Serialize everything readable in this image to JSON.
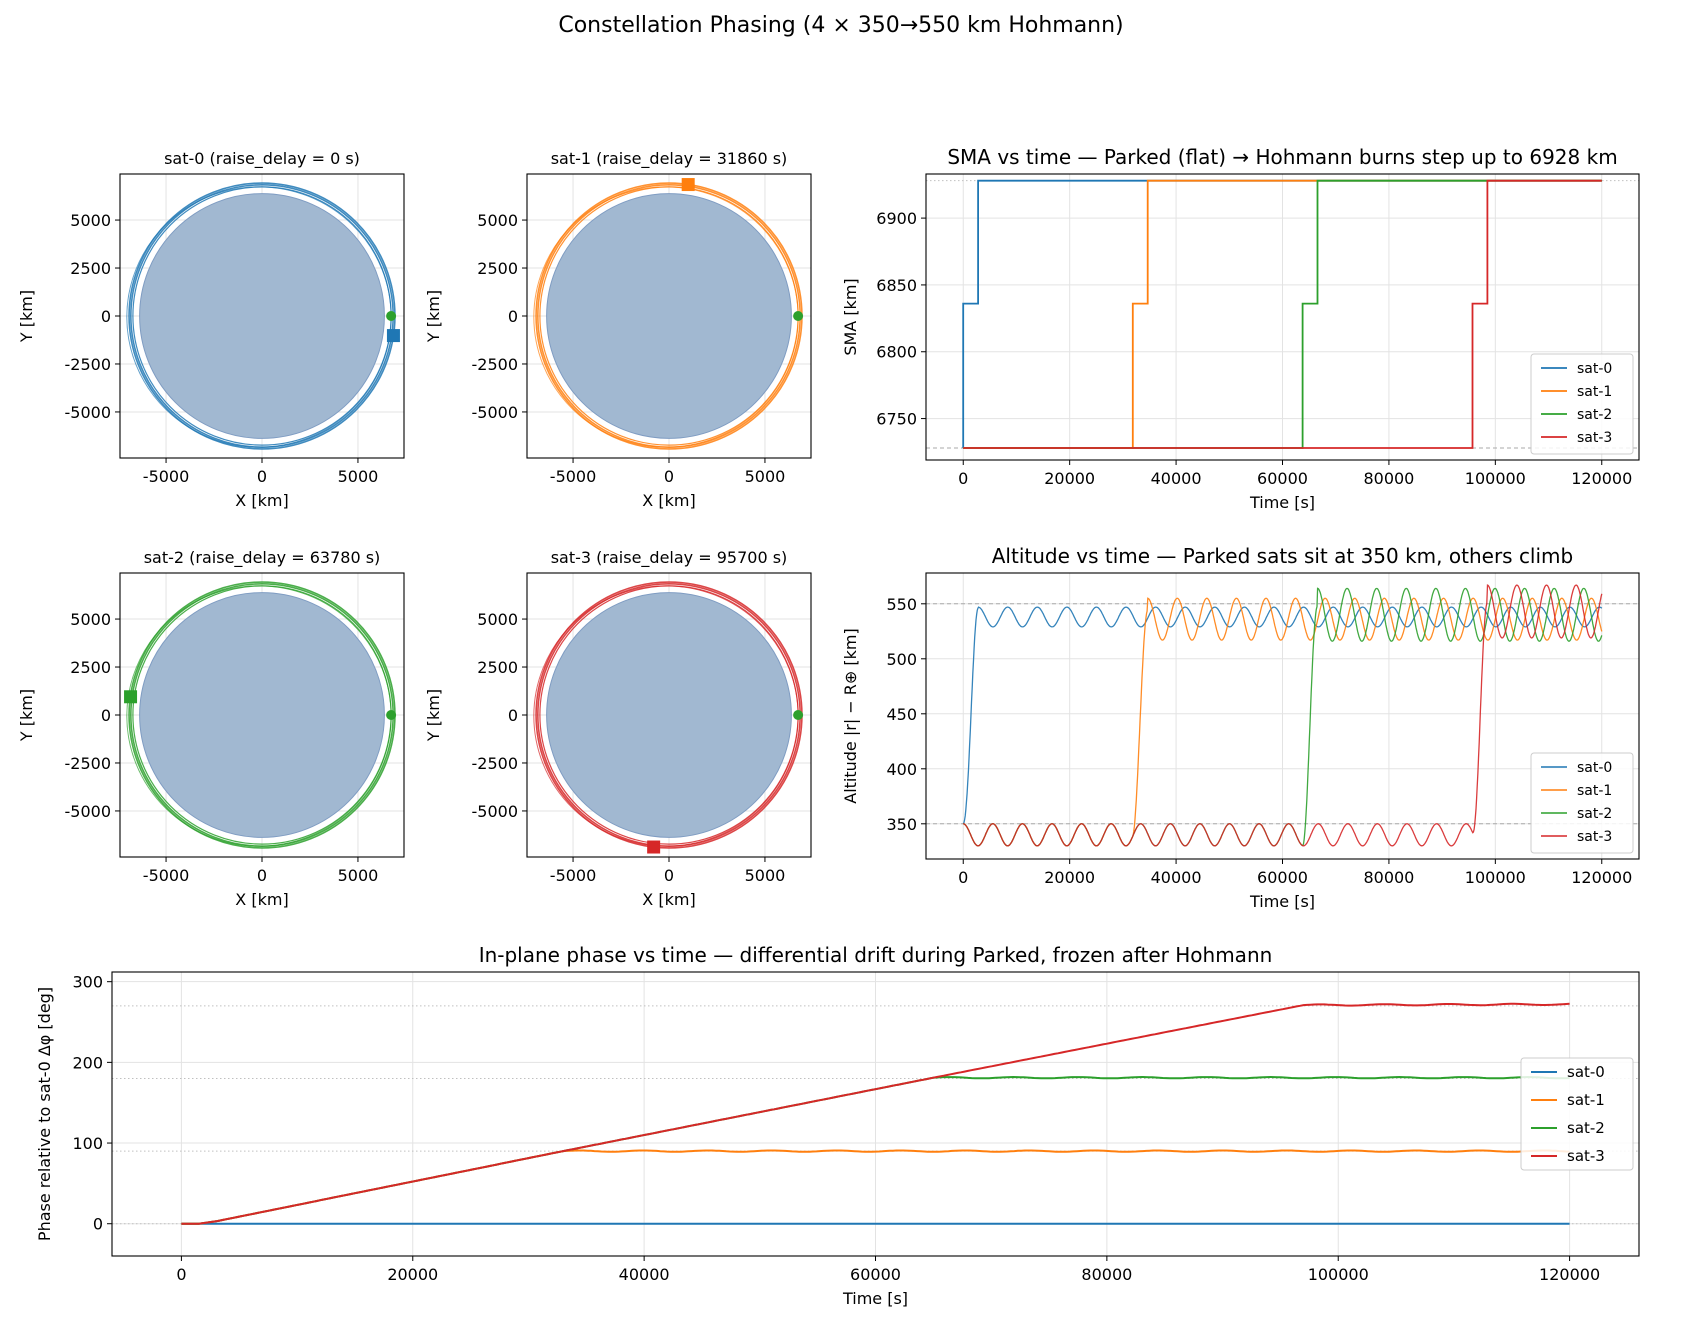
{
  "figure": {
    "suptitle": "Constellation Phasing (4 × 350→550 km Hohmann)"
  },
  "colors": {
    "sat-0": "#1f77b4",
    "sat-1": "#ff7f0e",
    "sat-2": "#2ca02c",
    "sat-3": "#d62728",
    "earth": "#a1b8d1",
    "marker_start": "#2ca02c"
  },
  "chart_data": [
    {
      "type": "line",
      "id": "orbit-sat-0",
      "title": "sat-0 (raise_delay = 0 s)",
      "xlabel": "X [km]",
      "ylabel": "Y [km]",
      "xlim": [
        -7400,
        7400
      ],
      "ylim": [
        -7400,
        7400
      ],
      "xticks": [
        -5000,
        0,
        5000
      ],
      "yticks": [
        -5000,
        -2500,
        0,
        2500,
        5000
      ],
      "earth_radius": 6378,
      "orbit_radii": [
        6728,
        6836,
        6928
      ],
      "start_marker": [
        6728,
        0
      ],
      "end_marker": [
        6850,
        -1020
      ],
      "grid": true
    },
    {
      "type": "line",
      "id": "orbit-sat-1",
      "title": "sat-1 (raise_delay = 31860 s)",
      "xlabel": "X [km]",
      "ylabel": "Y [km]",
      "xlim": [
        -7400,
        7400
      ],
      "ylim": [
        -7400,
        7400
      ],
      "xticks": [
        -5000,
        0,
        5000
      ],
      "yticks": [
        -5000,
        -2500,
        0,
        2500,
        5000
      ],
      "earth_radius": 6378,
      "orbit_radii": [
        6728,
        6836,
        6928
      ],
      "start_marker": [
        6728,
        0
      ],
      "end_marker": [
        1000,
        6850
      ],
      "grid": true
    },
    {
      "type": "line",
      "id": "orbit-sat-2",
      "title": "sat-2 (raise_delay = 63780 s)",
      "xlabel": "X [km]",
      "ylabel": "Y [km]",
      "xlim": [
        -7400,
        7400
      ],
      "ylim": [
        -7400,
        7400
      ],
      "xticks": [
        -5000,
        0,
        5000
      ],
      "yticks": [
        -5000,
        -2500,
        0,
        2500,
        5000
      ],
      "earth_radius": 6378,
      "orbit_radii": [
        6728,
        6836,
        6928
      ],
      "start_marker": [
        6728,
        0
      ],
      "end_marker": [
        -6850,
        950
      ],
      "grid": true
    },
    {
      "type": "line",
      "id": "orbit-sat-3",
      "title": "sat-3 (raise_delay = 95700 s)",
      "xlabel": "X [km]",
      "ylabel": "Y [km]",
      "xlim": [
        -7400,
        7400
      ],
      "ylim": [
        -7400,
        7400
      ],
      "xticks": [
        -5000,
        0,
        5000
      ],
      "yticks": [
        -5000,
        -2500,
        0,
        2500,
        5000
      ],
      "earth_radius": 6378,
      "orbit_radii": [
        6728,
        6836,
        6928
      ],
      "start_marker": [
        6728,
        0
      ],
      "end_marker": [
        -800,
        -6880
      ],
      "grid": true
    },
    {
      "type": "line",
      "id": "sma",
      "title": "SMA vs time — Parked (flat) → Hohmann burns step up to 6928 km",
      "xlabel": "Time [s]",
      "ylabel": "SMA [km]",
      "xlim": [
        -7000,
        127000
      ],
      "ylim": [
        6719,
        6933
      ],
      "xticks": [
        0,
        20000,
        40000,
        60000,
        80000,
        100000,
        120000
      ],
      "yticks": [
        6750,
        6800,
        6850,
        6900
      ],
      "reference_lines": [
        6728,
        6928
      ],
      "legend": "lower right",
      "grid": true,
      "series": [
        {
          "name": "sat-0",
          "x": [
            0,
            0,
            2800,
            2800,
            120000
          ],
          "y": [
            6728,
            6836,
            6836,
            6928,
            6928
          ]
        },
        {
          "name": "sat-1",
          "x": [
            0,
            31860,
            31860,
            34660,
            34660,
            120000
          ],
          "y": [
            6728,
            6728,
            6836,
            6836,
            6928,
            6928
          ]
        },
        {
          "name": "sat-2",
          "x": [
            0,
            63780,
            63780,
            66580,
            66580,
            120000
          ],
          "y": [
            6728,
            6728,
            6836,
            6836,
            6928,
            6928
          ]
        },
        {
          "name": "sat-3",
          "x": [
            0,
            95700,
            95700,
            98500,
            98500,
            120000
          ],
          "y": [
            6728,
            6728,
            6836,
            6836,
            6928,
            6928
          ]
        }
      ]
    },
    {
      "type": "line",
      "id": "altitude",
      "title": "Altitude vs time — Parked sats sit at 350 km, others climb",
      "xlabel": "Time [s]",
      "ylabel": "Altitude |r| − R⊕ [km]",
      "xlim": [
        -7000,
        127000
      ],
      "ylim": [
        318,
        578
      ],
      "xticks": [
        0,
        20000,
        40000,
        60000,
        80000,
        100000,
        120000
      ],
      "yticks": [
        350,
        400,
        450,
        500,
        550
      ],
      "reference_lines": [
        350,
        550
      ],
      "legend": "lower right",
      "grid": true,
      "oscillation_period_s": 5560,
      "series": [
        {
          "name": "sat-0",
          "raise_start": 0,
          "climb_end": 2800,
          "parked_mid": 340,
          "parked_amp": 10,
          "raised_mid": 538,
          "raised_amp": 9
        },
        {
          "name": "sat-1",
          "raise_start": 31860,
          "climb_end": 34660,
          "parked_mid": 340,
          "parked_amp": 10,
          "raised_mid": 536,
          "raised_amp": 19
        },
        {
          "name": "sat-2",
          "raise_start": 63780,
          "climb_end": 66580,
          "parked_mid": 340,
          "parked_amp": 10,
          "raised_mid": 540,
          "raised_amp": 24
        },
        {
          "name": "sat-3",
          "raise_start": 95700,
          "climb_end": 98500,
          "parked_mid": 340,
          "parked_amp": 10,
          "raised_mid": 543,
          "raised_amp": 24
        }
      ]
    },
    {
      "type": "line",
      "id": "phase",
      "title": "In-plane phase vs time — differential drift during Parked, frozen after Hohmann",
      "xlabel": "Time [s]",
      "ylabel": "Phase relative to sat-0 Δφ [deg]",
      "xlim": [
        -6000,
        126000
      ],
      "ylim": [
        -40,
        312
      ],
      "xticks": [
        0,
        20000,
        40000,
        60000,
        80000,
        100000,
        120000
      ],
      "yticks": [
        0,
        100,
        200,
        300
      ],
      "reference_lines": [
        90,
        180,
        270
      ],
      "legend": "center right",
      "grid": true,
      "series": [
        {
          "name": "sat-0",
          "x": [
            0,
            120000
          ],
          "y": [
            0,
            0
          ]
        },
        {
          "name": "sat-1",
          "x": [
            0,
            1500,
            3000,
            33000,
            120000
          ],
          "y": [
            0,
            0,
            3,
            90,
            90
          ]
        },
        {
          "name": "sat-2",
          "x": [
            0,
            1500,
            3000,
            33000,
            65000,
            120000
          ],
          "y": [
            0,
            0,
            3,
            90,
            181,
            181
          ]
        },
        {
          "name": "sat-3",
          "x": [
            0,
            1500,
            3000,
            33000,
            65000,
            97000,
            120000
          ],
          "y": [
            0,
            0,
            3,
            90,
            181,
            271,
            272
          ]
        }
      ]
    }
  ]
}
